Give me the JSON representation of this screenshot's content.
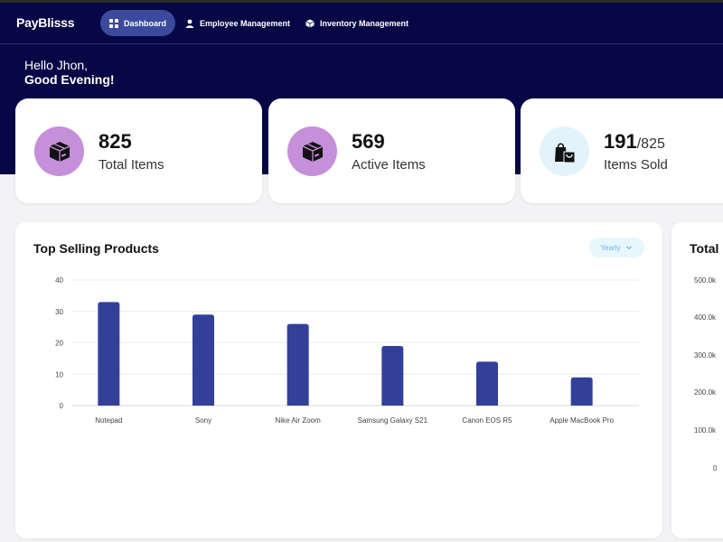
{
  "nav": {
    "brand": "PayBlisss",
    "items": [
      {
        "label": "Dashboard",
        "icon": "grid-icon",
        "active": true
      },
      {
        "label": "Employee Management",
        "icon": "user-icon",
        "active": false
      },
      {
        "label": "Inventory Management",
        "icon": "box-icon",
        "active": false
      }
    ]
  },
  "greeting": {
    "line1": "Hello Jhon,",
    "line2": "Good Evening!"
  },
  "stats": [
    {
      "value": "825",
      "suffix": "",
      "label": "Total Items",
      "icon": "package-icon",
      "icon_bg": "#c68fd9"
    },
    {
      "value": "569",
      "suffix": "",
      "label": "Active Items",
      "icon": "package-icon",
      "icon_bg": "#c68fd9"
    },
    {
      "value": "191",
      "suffix": "/825",
      "label": "Items Sold",
      "icon": "shopping-bag-icon",
      "icon_bg": "#e3f3fc"
    }
  ],
  "top_selling": {
    "title": "Top Selling Products",
    "period": "Yearly"
  },
  "total_panel": {
    "title": "Total",
    "ticks": [
      "500.0k",
      "400.0k",
      "300.0k",
      "200.0k",
      "100.0k",
      "0"
    ]
  },
  "colors": {
    "header": "#070746",
    "accent": "#3b4a9c",
    "bar": "#33409a"
  },
  "chart_data": {
    "type": "bar",
    "title": "Top Selling Products",
    "categories": [
      "Notepad",
      "Sony",
      "Nike Air Zoom",
      "Samsung Galaxy S21",
      "Canon EOS R5",
      "Apple MacBook Pro"
    ],
    "values": [
      33,
      29,
      26,
      19,
      14,
      9
    ],
    "ylim": [
      0,
      40
    ],
    "yticks": [
      0,
      10,
      20,
      30,
      40
    ],
    "grid": true,
    "legend": "none"
  }
}
